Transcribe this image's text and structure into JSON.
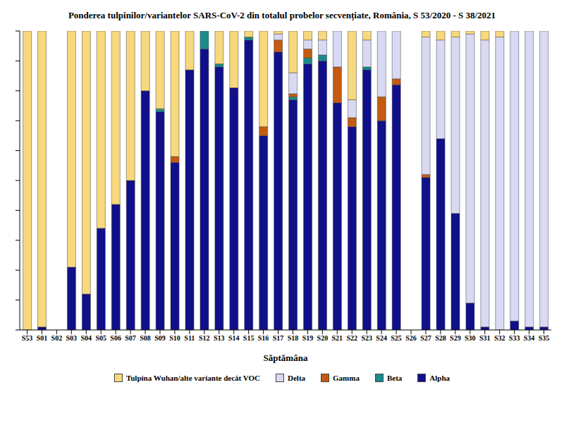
{
  "chart_data": {
    "type": "bar",
    "stacked": true,
    "title": "Ponderea tulpinilor/variantelor SARS-CoV-2 din totalul probelor secvențiate, România, S 53/2020 - S 38/2021",
    "x_label": "Săptămâna",
    "categories": [
      "S53",
      "S01",
      "S02",
      "S03",
      "S04",
      "S05",
      "S06",
      "S07",
      "S08",
      "S09",
      "S10",
      "S11",
      "S12",
      "S13",
      "S14",
      "S15",
      "S16",
      "S17",
      "S18",
      "S19",
      "S20",
      "S21",
      "S22",
      "S23",
      "S24",
      "S25",
      "S26",
      "S27",
      "S28",
      "S29",
      "S30",
      "S31",
      "S32",
      "S33",
      "S34",
      "S35"
    ],
    "ylim": [
      0,
      100
    ],
    "yticks": [
      0,
      10,
      20,
      30,
      40,
      50,
      60,
      70,
      80,
      90,
      100
    ],
    "tick_labels": "x",
    "grid": false,
    "legend": "bottom",
    "series": [
      {
        "name": "Alpha",
        "color": "#10108a",
        "values": [
          0,
          1,
          0,
          21,
          12,
          34,
          42,
          50,
          80,
          73,
          56,
          87,
          94,
          88,
          81,
          97,
          65,
          93,
          77,
          89,
          90,
          76,
          68,
          87,
          70,
          82,
          0,
          51,
          64,
          39,
          9,
          1,
          0,
          3,
          1,
          1
        ]
      },
      {
        "name": "Beta",
        "color": "#1a8a8a",
        "values": [
          0,
          0,
          0,
          0,
          0,
          0,
          0,
          0,
          0,
          1,
          0,
          0,
          6,
          1,
          0,
          1,
          0,
          0,
          1,
          2,
          2,
          0,
          0,
          1,
          0,
          0,
          0,
          0,
          0,
          0,
          0,
          0,
          0,
          0,
          0,
          0
        ]
      },
      {
        "name": "Gamma",
        "color": "#c55a11",
        "values": [
          0,
          0,
          0,
          0,
          0,
          0,
          0,
          0,
          0,
          0,
          2,
          0,
          0,
          0,
          0,
          0,
          3,
          4,
          1,
          3,
          0,
          12,
          3,
          0,
          8,
          2,
          0,
          1,
          0,
          0,
          0,
          0,
          0,
          0,
          0,
          0
        ]
      },
      {
        "name": "Delta",
        "color": "#d9d9f3",
        "values": [
          0,
          0,
          0,
          0,
          0,
          0,
          0,
          0,
          0,
          0,
          0,
          0,
          0,
          0,
          0,
          0,
          0,
          2,
          7,
          3,
          5,
          12,
          6,
          9,
          22,
          16,
          0,
          46,
          33,
          59,
          90,
          96,
          98,
          97,
          99,
          99
        ]
      },
      {
        "name": "Tulpina Wuhan/alte variante decât VOC",
        "color": "#f7d87c",
        "values": [
          100,
          99,
          0,
          79,
          88,
          66,
          58,
          50,
          20,
          26,
          42,
          13,
          0,
          11,
          19,
          2,
          32,
          1,
          14,
          3,
          3,
          0,
          23,
          3,
          0,
          0,
          0,
          2,
          3,
          2,
          1,
          3,
          2,
          0,
          0,
          0
        ]
      }
    ]
  }
}
